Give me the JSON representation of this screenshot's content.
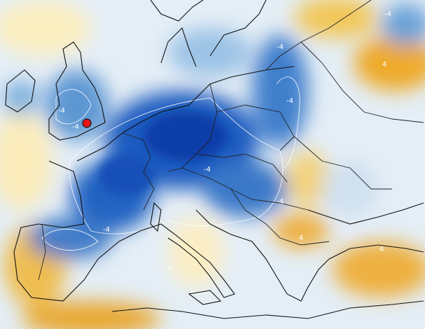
{
  "map": {
    "contour_labels": [
      "-4",
      "4",
      "-4",
      "-4",
      "-4",
      "-4",
      "-4",
      "-4",
      "-4",
      "-4",
      "4",
      "4"
    ]
  }
}
